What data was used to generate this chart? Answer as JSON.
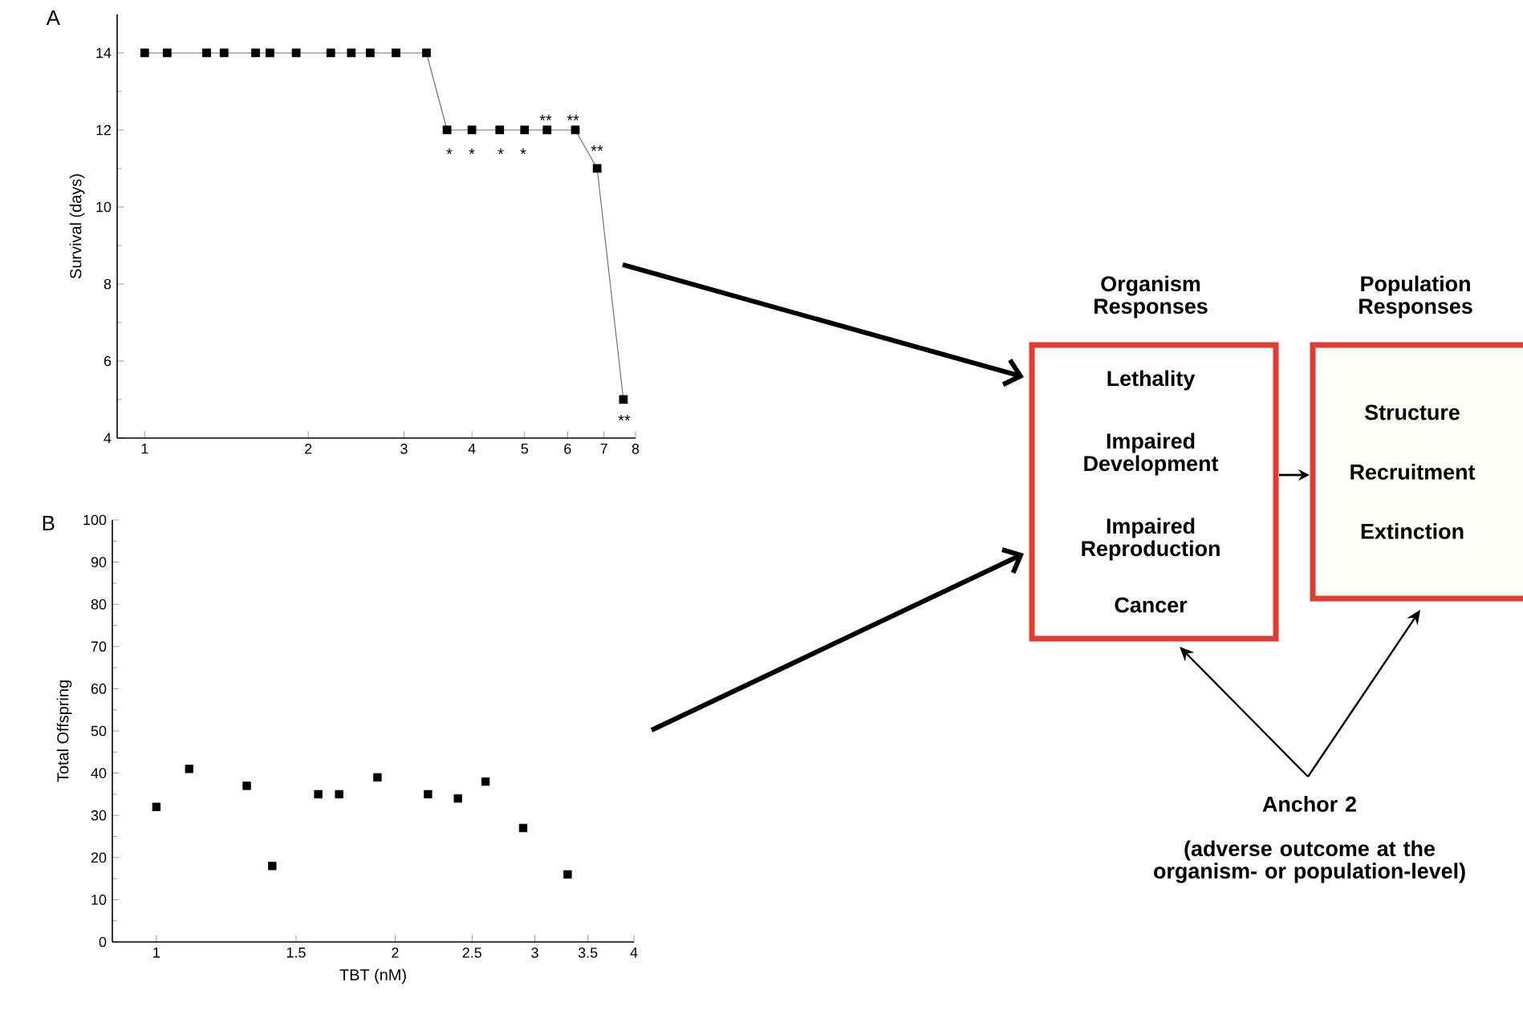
{
  "chart_data": [
    {
      "type": "line",
      "title": "A",
      "ylabel": "Survival (days)",
      "x": [
        1,
        1.1,
        1.3,
        1.4,
        1.6,
        1.7,
        1.9,
        2.2,
        2.4,
        2.6,
        2.9,
        3.3,
        3.6,
        4.0,
        4.5,
        5.0,
        5.5,
        6.2,
        6.8,
        7.6
      ],
      "values": [
        14,
        14,
        14,
        14,
        14,
        14,
        14,
        14,
        14,
        14,
        14,
        14,
        12,
        12,
        12,
        12,
        12,
        12,
        11,
        5
      ],
      "color": "#000000",
      "marker": "square",
      "line_style": "solid",
      "log": "x",
      "xlim": [
        0.89,
        8
      ],
      "xticks": [
        1,
        2,
        3,
        4,
        5,
        6,
        7,
        8
      ],
      "ylim": [
        4,
        15
      ],
      "yticks": [
        4,
        6,
        8,
        10,
        12,
        14
      ],
      "annotations": [
        "*",
        "*",
        "*",
        "*",
        "**",
        "**",
        "**",
        "**"
      ]
    },
    {
      "type": "scatter",
      "title": "B",
      "ylabel": "Total Offspring",
      "xlabel": "TBT (nM)",
      "x": [
        1,
        1.1,
        1.3,
        1.4,
        1.6,
        1.7,
        1.9,
        2.2,
        2.4,
        2.6,
        2.9,
        3.3
      ],
      "values": [
        32,
        41,
        37,
        18,
        35,
        35,
        39,
        35,
        34,
        38,
        27,
        16
      ],
      "color": "#000000",
      "marker": "square",
      "log": "x",
      "xlim": [
        0.88,
        4
      ],
      "xticks": [
        1,
        1.5,
        2,
        2.5,
        3,
        3.5,
        4
      ],
      "ylim": [
        0,
        100
      ],
      "yticks": [
        0,
        10,
        20,
        30,
        40,
        50,
        60,
        70,
        80,
        90,
        100
      ]
    },
    {
      "type": "other",
      "annotations": [
        "Organism Responses",
        "Population Responses",
        "Lethality",
        "Impaired Development",
        "Impaired Reproduction",
        "Cancer",
        "Structure",
        "Recruitment",
        "Extinction",
        "Anchor 2",
        "(adverse outcome at the organism- or population-level)"
      ]
    }
  ]
}
